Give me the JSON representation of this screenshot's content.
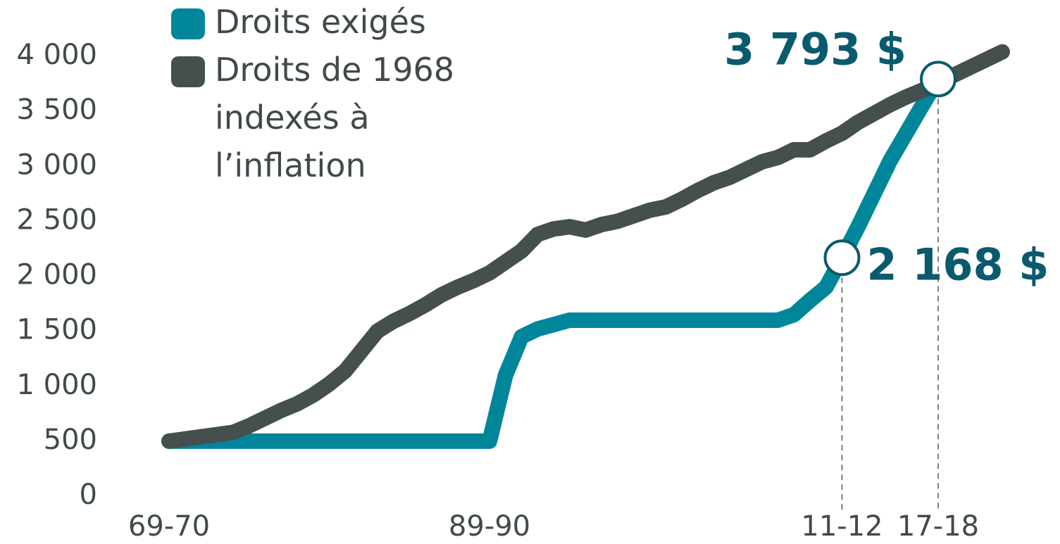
{
  "chart_data": {
    "type": "line",
    "categories": [
      "69-70",
      null,
      null,
      null,
      null,
      null,
      null,
      null,
      null,
      null,
      null,
      null,
      null,
      null,
      null,
      null,
      null,
      null,
      null,
      null,
      "89-90",
      null,
      null,
      null,
      null,
      null,
      null,
      null,
      null,
      null,
      null,
      null,
      null,
      null,
      null,
      null,
      null,
      null,
      null,
      null,
      null,
      null,
      "11-12",
      null,
      null,
      null,
      null,
      null,
      "17-18",
      null,
      null,
      null,
      null
    ],
    "series": [
      {
        "name": "Droits exigés",
        "color": "#00869a",
        "values": [
          500,
          500,
          500,
          500,
          500,
          500,
          500,
          500,
          500,
          500,
          500,
          500,
          500,
          500,
          500,
          500,
          500,
          500,
          500,
          500,
          500,
          1100,
          1450,
          1520,
          1560,
          1600,
          1600,
          1600,
          1600,
          1600,
          1600,
          1600,
          1600,
          1600,
          1600,
          1600,
          1600,
          1600,
          1600,
          1650,
          1780,
          1900,
          2168,
          2450,
          2750,
          3050,
          3300,
          3550,
          3793,
          null,
          null,
          null,
          null
        ],
        "value_labels": [
          null,
          null,
          null,
          null,
          null,
          null,
          null,
          null,
          null,
          null,
          null,
          null,
          null,
          null,
          null,
          null,
          null,
          null,
          null,
          null,
          null,
          null,
          null,
          null,
          null,
          null,
          null,
          null,
          null,
          null,
          null,
          null,
          null,
          null,
          null,
          null,
          null,
          null,
          null,
          null,
          null,
          null,
          "2 168 $",
          null,
          null,
          null,
          null,
          null,
          "3 793 $",
          null,
          null,
          null,
          null
        ]
      },
      {
        "name": "Droits de 1968 indexés à l’inflation",
        "color": "#454f4e",
        "values": [
          500,
          520,
          540,
          560,
          580,
          640,
          710,
          780,
          840,
          920,
          1020,
          1140,
          1320,
          1500,
          1590,
          1660,
          1740,
          1830,
          1900,
          1960,
          2030,
          2130,
          2230,
          2380,
          2430,
          2450,
          2420,
          2470,
          2500,
          2550,
          2600,
          2630,
          2700,
          2780,
          2850,
          2900,
          2970,
          3040,
          3080,
          3150,
          3150,
          3230,
          3300,
          3400,
          3480,
          3560,
          3630,
          3690,
          3760,
          3830,
          3900,
          3970,
          4040
        ]
      }
    ],
    "ylim": [
      0,
      4000
    ],
    "yticks": [
      0,
      500,
      {
        "value": 1000,
        "label": "1 000"
      },
      {
        "value": 1500,
        "label": "1 500"
      },
      {
        "value": 2000,
        "label": "2 000"
      },
      {
        "value": 2500,
        "label": "2 500"
      },
      {
        "value": 3000,
        "label": "3 000"
      },
      {
        "value": 3500,
        "label": "3 500"
      },
      {
        "value": 4000,
        "label": "4 000"
      }
    ],
    "grid": false,
    "legend": "top-left"
  }
}
